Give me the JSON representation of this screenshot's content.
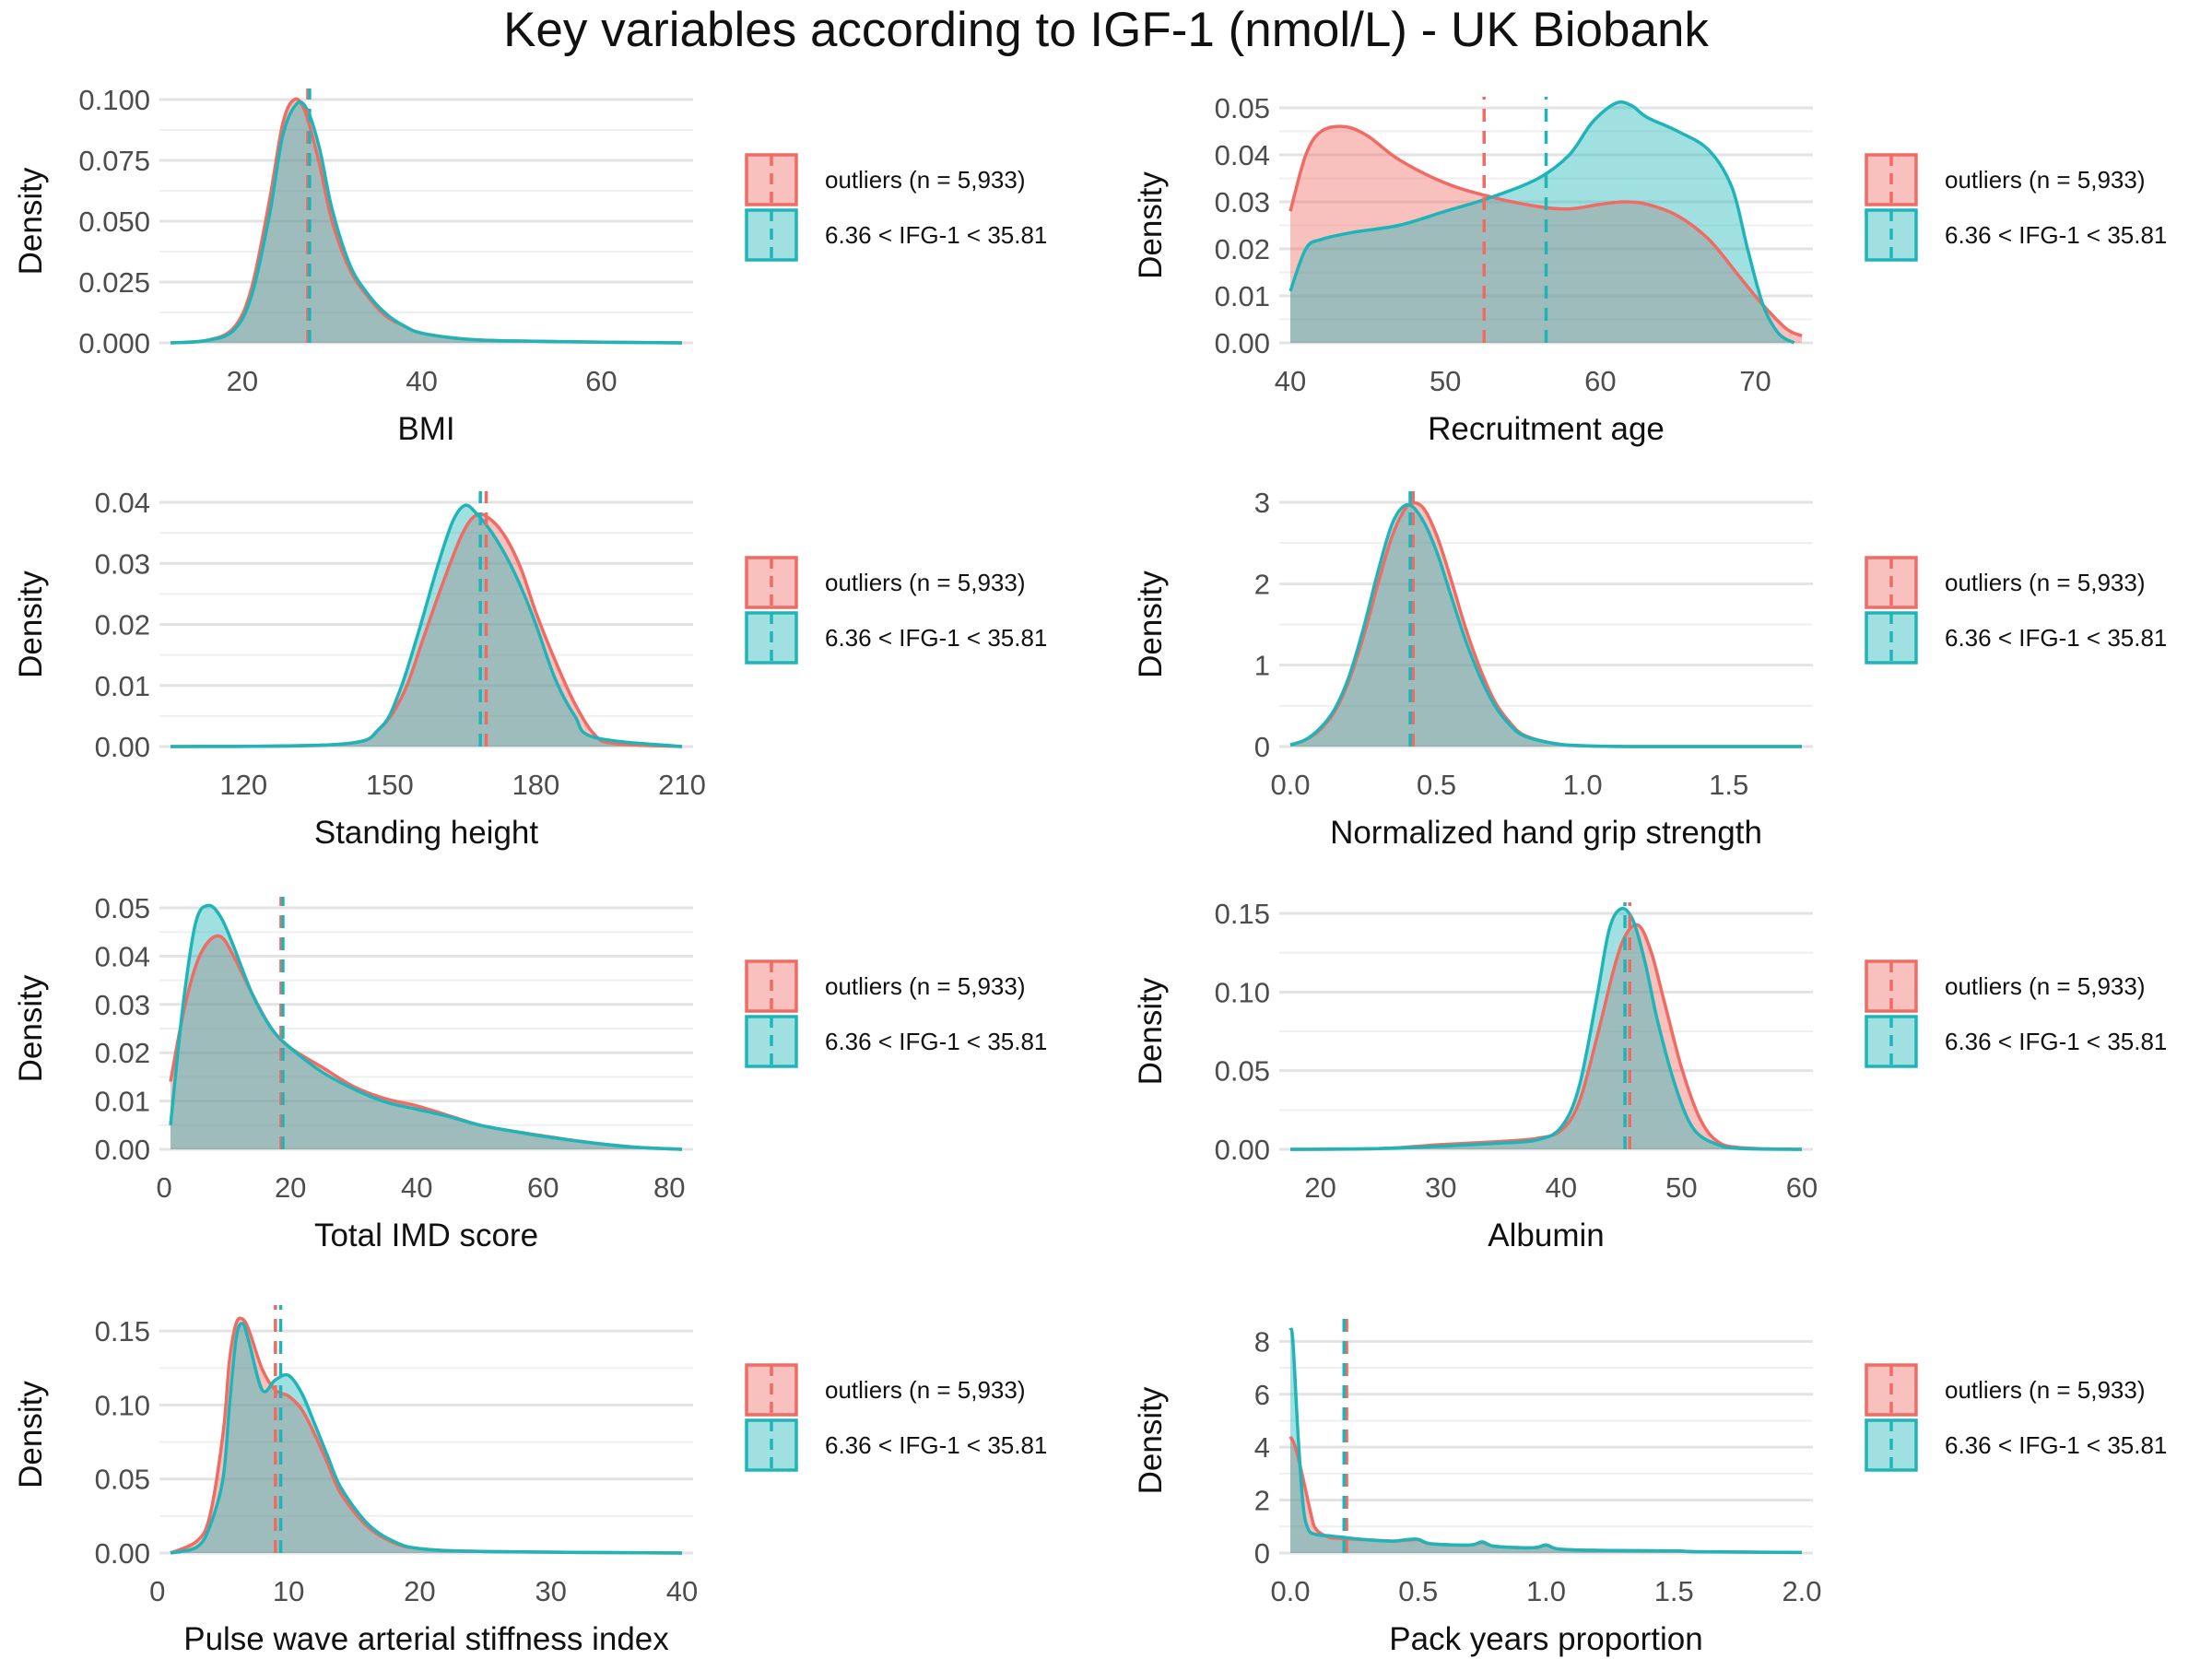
{
  "title": "Key variables according to IGF-1 (nmol/L) - UK Biobank",
  "colors": {
    "outliers": "#F06B64",
    "normal": "#1FB5B8",
    "grid": "#E3E3E3"
  },
  "legend": {
    "items": [
      "outliers (n = 5,933)",
      "6.36 < IFG-1 < 35.81"
    ]
  },
  "chart_data": [
    {
      "type": "area",
      "xlabel": "BMI",
      "ylabel": "Density",
      "xlim": [
        12,
        69
      ],
      "ylim": [
        0,
        0.1
      ],
      "xticks": [
        20,
        40,
        60
      ],
      "yticks": [
        0,
        0.025,
        0.05,
        0.075,
        0.1
      ],
      "xtick_labels": [
        "20",
        "40",
        "60"
      ],
      "ytick_labels": [
        "0.000",
        "0.025",
        "0.050",
        "0.075",
        "0.100"
      ],
      "series": [
        {
          "name": "outliers (n = 5,933)",
          "mean": 27.3,
          "x": [
            12,
            16,
            19,
            21,
            23,
            24.5,
            25.8,
            27,
            28.5,
            30,
            32,
            34,
            36,
            38,
            40,
            45,
            50,
            60,
            69
          ],
          "y": [
            0,
            0.001,
            0.006,
            0.022,
            0.058,
            0.09,
            0.1,
            0.095,
            0.075,
            0.05,
            0.03,
            0.019,
            0.011,
            0.007,
            0.004,
            0.0015,
            0.0008,
            0.0003,
            0
          ]
        },
        {
          "name": "6.36 < IFG-1 < 35.81",
          "mean": 27.5,
          "x": [
            12,
            16,
            19,
            21,
            23,
            24.5,
            26,
            27.2,
            28.6,
            30,
            32,
            34,
            36,
            38,
            40,
            45,
            50,
            60,
            69
          ],
          "y": [
            0,
            0.001,
            0.005,
            0.019,
            0.052,
            0.085,
            0.098,
            0.096,
            0.08,
            0.055,
            0.032,
            0.02,
            0.012,
            0.007,
            0.004,
            0.0015,
            0.0008,
            0.0003,
            0
          ]
        }
      ]
    },
    {
      "type": "area",
      "xlabel": "Recruitment age",
      "ylabel": "Density",
      "xlim": [
        40,
        73
      ],
      "ylim": [
        0,
        0.05
      ],
      "xticks": [
        40,
        50,
        60,
        70
      ],
      "yticks": [
        0,
        0.01,
        0.02,
        0.03,
        0.04,
        0.05
      ],
      "xtick_labels": [
        "40",
        "50",
        "60",
        "70"
      ],
      "ytick_labels": [
        "0.00",
        "0.01",
        "0.02",
        "0.03",
        "0.04",
        "0.05"
      ],
      "series": [
        {
          "name": "outliers (n = 5,933)",
          "mean": 52.5,
          "x": [
            40,
            41,
            42,
            43.5,
            45,
            47,
            50,
            53,
            56,
            58,
            60,
            61.5,
            63,
            65,
            67,
            69,
            70.5,
            72,
            73
          ],
          "y": [
            0.028,
            0.04,
            0.045,
            0.046,
            0.044,
            0.039,
            0.034,
            0.031,
            0.029,
            0.0285,
            0.0295,
            0.03,
            0.0295,
            0.027,
            0.022,
            0.014,
            0.008,
            0.003,
            0.0015
          ]
        },
        {
          "name": "6.36 < IFG-1 < 35.81",
          "mean": 56.5,
          "x": [
            40,
            41,
            42,
            44,
            47,
            50,
            53,
            56,
            58,
            59.5,
            61,
            62,
            63,
            65,
            67,
            68.5,
            69.5,
            70.5,
            71.5,
            72.5
          ],
          "y": [
            0.011,
            0.02,
            0.022,
            0.0235,
            0.025,
            0.028,
            0.031,
            0.035,
            0.04,
            0.047,
            0.051,
            0.0505,
            0.048,
            0.045,
            0.041,
            0.033,
            0.02,
            0.008,
            0.002,
            0
          ]
        }
      ]
    },
    {
      "type": "area",
      "xlabel": "Standing height",
      "ylabel": "Density",
      "xlim": [
        105,
        210
      ],
      "ylim": [
        0,
        0.04
      ],
      "xticks": [
        120,
        150,
        180,
        210
      ],
      "yticks": [
        0,
        0.01,
        0.02,
        0.03,
        0.04
      ],
      "xtick_labels": [
        "120",
        "150",
        "180",
        "210"
      ],
      "ytick_labels": [
        "0.00",
        "0.01",
        "0.02",
        "0.03",
        "0.04"
      ],
      "series": [
        {
          "name": "outliers (n = 5,933)",
          "mean": 169.8,
          "x": [
            105,
            140,
            148,
            153,
            157,
            161,
            165,
            168,
            171,
            174,
            177,
            180,
            184,
            188,
            192,
            196,
            210
          ],
          "y": [
            0,
            0.0004,
            0.003,
            0.009,
            0.018,
            0.027,
            0.035,
            0.038,
            0.037,
            0.034,
            0.029,
            0.022,
            0.014,
            0.007,
            0.002,
            0.0005,
            0
          ]
        },
        {
          "name": "6.36 < IFG-1 < 35.81",
          "mean": 168.6,
          "x": [
            105,
            140,
            148,
            152,
            156,
            160,
            163,
            165.5,
            168,
            171,
            174,
            177,
            180,
            184,
            188,
            192,
            210
          ],
          "y": [
            0,
            0.0004,
            0.003,
            0.009,
            0.019,
            0.03,
            0.037,
            0.0395,
            0.038,
            0.035,
            0.031,
            0.026,
            0.02,
            0.011,
            0.005,
            0.0015,
            0
          ]
        }
      ]
    },
    {
      "type": "area",
      "xlabel": "Normalized hand grip strength",
      "ylabel": "Density",
      "xlim": [
        0,
        1.75
      ],
      "ylim": [
        0,
        3
      ],
      "xticks": [
        0,
        0.5,
        1,
        1.5
      ],
      "yticks": [
        0,
        1,
        2,
        3
      ],
      "xtick_labels": [
        "0.0",
        "0.5",
        "1.0",
        "1.5"
      ],
      "ytick_labels": [
        "0",
        "1",
        "2",
        "3"
      ],
      "series": [
        {
          "name": "outliers (n = 5,933)",
          "mean": 0.42,
          "x": [
            0,
            0.05,
            0.1,
            0.15,
            0.2,
            0.25,
            0.3,
            0.35,
            0.4,
            0.45,
            0.5,
            0.55,
            0.6,
            0.65,
            0.7,
            0.75,
            0.8,
            0.9,
            1.0,
            1.2,
            1.75
          ],
          "y": [
            0.02,
            0.08,
            0.2,
            0.42,
            0.8,
            1.35,
            2.0,
            2.6,
            2.95,
            2.95,
            2.6,
            2.05,
            1.45,
            0.95,
            0.55,
            0.3,
            0.14,
            0.04,
            0.01,
            0,
            0
          ]
        },
        {
          "name": "6.36 < IFG-1 < 35.81",
          "mean": 0.41,
          "x": [
            0,
            0.05,
            0.1,
            0.15,
            0.2,
            0.25,
            0.3,
            0.35,
            0.4,
            0.45,
            0.5,
            0.55,
            0.6,
            0.65,
            0.7,
            0.75,
            0.8,
            0.9,
            1.0,
            1.2,
            1.75
          ],
          "y": [
            0.02,
            0.08,
            0.22,
            0.45,
            0.85,
            1.45,
            2.15,
            2.75,
            2.97,
            2.8,
            2.4,
            1.85,
            1.3,
            0.85,
            0.5,
            0.27,
            0.13,
            0.04,
            0.01,
            0,
            0
          ]
        }
      ]
    },
    {
      "type": "area",
      "xlabel": "Total IMD score",
      "ylabel": "Density",
      "xlim": [
        1,
        82
      ],
      "ylim": [
        0,
        0.05
      ],
      "xticks": [
        0,
        20,
        40,
        60,
        80
      ],
      "yticks": [
        0,
        0.01,
        0.02,
        0.03,
        0.04,
        0.05
      ],
      "xtick_labels": [
        "0",
        "20",
        "40",
        "60",
        "80"
      ],
      "ytick_labels": [
        "0.00",
        "0.01",
        "0.02",
        "0.03",
        "0.04",
        "0.05"
      ],
      "series": [
        {
          "name": "outliers (n = 5,933)",
          "mean": 18.5,
          "x": [
            1,
            3,
            5,
            7,
            9,
            11,
            14,
            17,
            20,
            25,
            30,
            35,
            40,
            45,
            50,
            55,
            60,
            65,
            70,
            75,
            82
          ],
          "y": [
            0.014,
            0.028,
            0.038,
            0.043,
            0.044,
            0.04,
            0.032,
            0.025,
            0.021,
            0.017,
            0.013,
            0.0105,
            0.009,
            0.007,
            0.005,
            0.0038,
            0.0028,
            0.0018,
            0.001,
            0.0004,
            0
          ]
        },
        {
          "name": "6.36 < IFG-1 < 35.81",
          "mean": 18.8,
          "x": [
            1,
            3,
            5,
            7,
            9,
            11,
            14,
            17,
            20,
            25,
            30,
            35,
            40,
            45,
            50,
            55,
            60,
            65,
            70,
            75,
            82
          ],
          "y": [
            0.005,
            0.03,
            0.047,
            0.0505,
            0.048,
            0.042,
            0.032,
            0.025,
            0.021,
            0.016,
            0.0125,
            0.0098,
            0.0083,
            0.0068,
            0.005,
            0.0038,
            0.0027,
            0.0018,
            0.001,
            0.0004,
            0
          ]
        }
      ]
    },
    {
      "type": "area",
      "xlabel": "Albumin",
      "ylabel": "Density",
      "xlim": [
        17.5,
        60
      ],
      "ylim": [
        0,
        0.15
      ],
      "xticks": [
        20,
        30,
        40,
        50,
        60
      ],
      "yticks": [
        0,
        0.05,
        0.1,
        0.15
      ],
      "xtick_labels": [
        "20",
        "30",
        "40",
        "50",
        "60"
      ],
      "ytick_labels": [
        "0.00",
        "0.05",
        "0.10",
        "0.15"
      ],
      "series": [
        {
          "name": "outliers (n = 5,933)",
          "mean": 45.7,
          "x": [
            17.5,
            25,
            30,
            35,
            38,
            40,
            41.5,
            43,
            44.5,
            45.5,
            46.5,
            47.5,
            48.5,
            50,
            51.5,
            53,
            55,
            60
          ],
          "y": [
            0,
            0.0005,
            0.003,
            0.005,
            0.007,
            0.012,
            0.03,
            0.072,
            0.118,
            0.138,
            0.142,
            0.125,
            0.096,
            0.052,
            0.02,
            0.005,
            0.001,
            0
          ]
        },
        {
          "name": "6.36 < IFG-1 < 35.81",
          "mean": 45.3,
          "x": [
            17.5,
            25,
            30,
            35,
            38,
            40,
            41.5,
            43,
            44,
            45,
            46,
            47,
            48,
            49.5,
            51,
            53,
            55,
            60
          ],
          "y": [
            0,
            0.0005,
            0.002,
            0.004,
            0.006,
            0.014,
            0.04,
            0.098,
            0.14,
            0.155,
            0.145,
            0.118,
            0.082,
            0.04,
            0.013,
            0.003,
            0.0005,
            0
          ]
        }
      ]
    },
    {
      "type": "area",
      "xlabel": "Pulse wave arterial stiffness index",
      "ylabel": "Density",
      "xlim": [
        1,
        40
      ],
      "ylim": [
        0,
        0.16
      ],
      "xticks": [
        0,
        10,
        20,
        30,
        40
      ],
      "yticks": [
        0,
        0.05,
        0.1,
        0.15
      ],
      "xtick_labels": [
        "0",
        "10",
        "20",
        "30",
        "40"
      ],
      "ytick_labels": [
        "0.00",
        "0.05",
        "0.10",
        "0.15"
      ],
      "series": [
        {
          "name": "outliers (n = 5,933)",
          "mean": 9.0,
          "x": [
            1,
            3,
            4,
            5,
            5.5,
            6,
            6.5,
            7,
            8,
            9,
            10,
            11,
            12,
            13,
            14,
            16,
            18,
            20,
            25,
            40
          ],
          "y": [
            0,
            0.008,
            0.025,
            0.08,
            0.13,
            0.155,
            0.158,
            0.15,
            0.124,
            0.11,
            0.106,
            0.097,
            0.08,
            0.06,
            0.04,
            0.018,
            0.007,
            0.003,
            0.001,
            0
          ]
        },
        {
          "name": "6.36 < IFG-1 < 35.81",
          "mean": 9.4,
          "x": [
            1,
            3,
            4,
            5,
            5.5,
            6,
            6.5,
            7,
            8,
            9,
            10,
            11,
            12,
            13,
            14,
            16,
            18,
            20,
            25,
            40
          ],
          "y": [
            0,
            0.004,
            0.018,
            0.05,
            0.1,
            0.145,
            0.155,
            0.142,
            0.11,
            0.117,
            0.12,
            0.108,
            0.087,
            0.065,
            0.044,
            0.02,
            0.008,
            0.003,
            0.001,
            0
          ]
        }
      ]
    },
    {
      "type": "area",
      "xlabel": "Pack years proportion",
      "ylabel": "Density",
      "xlim": [
        0,
        2
      ],
      "ylim": [
        0,
        8.5
      ],
      "xticks": [
        0,
        0.5,
        1,
        1.5,
        2
      ],
      "yticks": [
        0,
        2,
        4,
        6,
        8
      ],
      "xtick_labels": [
        "0.0",
        "0.5",
        "1.0",
        "1.5",
        "2.0"
      ],
      "ytick_labels": [
        "0",
        "2",
        "4",
        "6",
        "8"
      ],
      "series": [
        {
          "name": "outliers (n = 5,933)",
          "mean": 0.22,
          "x": [
            0,
            0.02,
            0.05,
            0.08,
            0.1,
            0.15,
            0.2,
            0.3,
            0.4,
            0.45,
            0.5,
            0.55,
            0.7,
            0.75,
            0.8,
            0.95,
            1.0,
            1.05,
            1.2,
            1.5,
            1.6,
            2.0
          ],
          "y": [
            4.4,
            4.0,
            2.8,
            1.5,
            0.9,
            0.6,
            0.55,
            0.5,
            0.45,
            0.48,
            0.5,
            0.35,
            0.3,
            0.4,
            0.25,
            0.2,
            0.3,
            0.15,
            0.1,
            0.08,
            0.05,
            0.02
          ]
        },
        {
          "name": "6.36 < IFG-1 < 35.81",
          "mean": 0.21,
          "x": [
            0,
            0.01,
            0.03,
            0.05,
            0.07,
            0.1,
            0.15,
            0.2,
            0.3,
            0.4,
            0.45,
            0.5,
            0.55,
            0.7,
            0.75,
            0.8,
            0.95,
            1.0,
            1.05,
            1.2,
            1.5,
            1.6,
            2.0
          ],
          "y": [
            8.5,
            8.0,
            4.5,
            1.8,
            0.9,
            0.7,
            0.65,
            0.6,
            0.5,
            0.45,
            0.5,
            0.52,
            0.35,
            0.3,
            0.42,
            0.25,
            0.2,
            0.3,
            0.15,
            0.1,
            0.08,
            0.05,
            0.02
          ]
        }
      ]
    }
  ]
}
